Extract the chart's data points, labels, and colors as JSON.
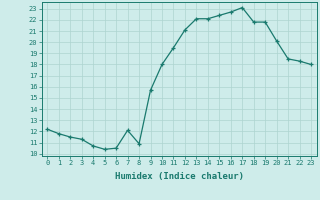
{
  "x": [
    0,
    1,
    2,
    3,
    4,
    5,
    6,
    7,
    8,
    9,
    10,
    11,
    12,
    13,
    14,
    15,
    16,
    17,
    18,
    19,
    20,
    21,
    22,
    23
  ],
  "y": [
    12.2,
    11.8,
    11.5,
    11.3,
    10.7,
    10.4,
    10.5,
    12.1,
    10.9,
    15.7,
    18.0,
    19.5,
    21.1,
    22.1,
    22.1,
    22.4,
    22.7,
    23.1,
    21.8,
    21.8,
    20.1,
    18.5,
    18.3,
    18.0
  ],
  "xlabel": "Humidex (Indice chaleur)",
  "xticks": [
    0,
    1,
    2,
    3,
    4,
    5,
    6,
    7,
    8,
    9,
    10,
    11,
    12,
    13,
    14,
    15,
    16,
    17,
    18,
    19,
    20,
    21,
    22,
    23
  ],
  "yticks": [
    10,
    11,
    12,
    13,
    14,
    15,
    16,
    17,
    18,
    19,
    20,
    21,
    22,
    23
  ],
  "ylim": [
    9.8,
    23.6
  ],
  "xlim": [
    -0.5,
    23.5
  ],
  "line_color": "#1a7a6e",
  "marker": "+",
  "background_color": "#ceecea",
  "grid_color": "#aed4d0",
  "title": ""
}
